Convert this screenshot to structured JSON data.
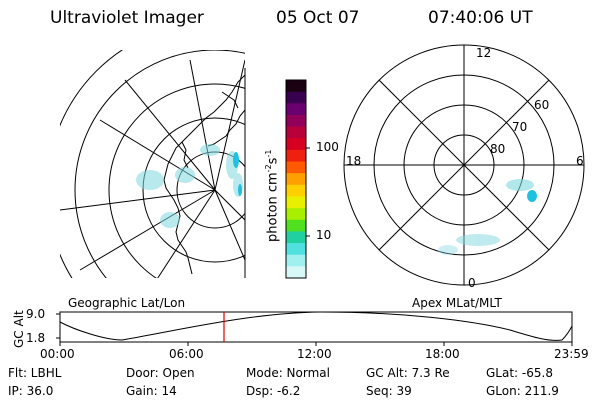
{
  "header": {
    "instrument": "Ultraviolet Imager",
    "date": "05 Oct 07",
    "time": "07:40:06 UT"
  },
  "colorbar": {
    "label": "photon cm",
    "sup1": "-2",
    "unit_s": "s",
    "sup2": "-1",
    "ticks": [
      "100",
      "10"
    ],
    "colors": [
      "#1a0010",
      "#3a0050",
      "#6a0070",
      "#90005a",
      "#b8003a",
      "#d80020",
      "#f02010",
      "#ff5a00",
      "#ffa000",
      "#ffd000",
      "#e8f000",
      "#a8f000",
      "#50e020",
      "#20d0a0",
      "#50e0e0",
      "#a0f0f0",
      "#d8f8f8"
    ]
  },
  "polar_plot": {
    "clock_labels": {
      "top": "12",
      "left": "18",
      "right": "6",
      "bottom": "0"
    },
    "lat_labels": [
      "60",
      "70",
      "80"
    ]
  },
  "timeline": {
    "left_label": "Geographic Lat/Lon",
    "right_label": "Apex MLat/MLT",
    "axis_title": "GC Alt",
    "y_ticks": [
      "9.0",
      "1.8"
    ],
    "x_ticks": [
      "00:00",
      "06:00",
      "12:00",
      "18:00",
      "23:59"
    ],
    "current_time_marker": "07:40:06"
  },
  "info": {
    "flt": "Flt: LBHL",
    "ip": "IP: 36.0",
    "door": "Door: Open",
    "gain": "Gain: 14",
    "mode": "Mode: Normal",
    "dsp": "Dsp:    -6.2",
    "gcalt": "GC Alt: 7.3 Re",
    "seq": "Seq: 39",
    "glat": "GLat: -65.8",
    "glon": "GLon: 211.9"
  },
  "colors": {
    "marker": "#e00000",
    "aurora": "#7fd8e0"
  }
}
